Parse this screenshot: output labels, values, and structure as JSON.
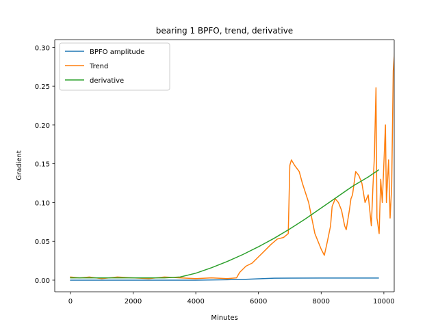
{
  "chart_data": {
    "type": "line",
    "title": "bearing 1 BPFO, trend, derivative",
    "xlabel": "Minutes",
    "ylabel": "Gradient",
    "xlim": [
      -500,
      10330
    ],
    "ylim": [
      -0.015,
      0.31
    ],
    "xticks": [
      0,
      2000,
      4000,
      6000,
      8000,
      10000
    ],
    "xtick_labels": [
      "0",
      "2000",
      "4000",
      "6000",
      "8000",
      "10000"
    ],
    "yticks": [
      0.0,
      0.05,
      0.1,
      0.15,
      0.2,
      0.25,
      0.3
    ],
    "ytick_labels": [
      "0.00",
      "0.05",
      "0.10",
      "0.15",
      "0.20",
      "0.25",
      "0.30"
    ],
    "grid": false,
    "legend_position": "top-left",
    "series": [
      {
        "name": "BPFO amplitude",
        "color": "#1f77b4",
        "points": [
          [
            0,
            0.0
          ],
          [
            2000,
            0.0
          ],
          [
            4000,
            0.0
          ],
          [
            5000,
            0.0005
          ],
          [
            5600,
            0.001
          ],
          [
            6000,
            0.0017
          ],
          [
            6500,
            0.0025
          ],
          [
            7000,
            0.0026
          ],
          [
            8000,
            0.0027
          ],
          [
            9000,
            0.0027
          ],
          [
            9830,
            0.0027
          ]
        ]
      },
      {
        "name": "Trend",
        "color": "#ff7f0e",
        "points": [
          [
            0,
            0.004
          ],
          [
            300,
            0.003
          ],
          [
            600,
            0.004
          ],
          [
            1000,
            0.002
          ],
          [
            1500,
            0.004
          ],
          [
            2000,
            0.003
          ],
          [
            2500,
            0.002
          ],
          [
            3000,
            0.004
          ],
          [
            3500,
            0.003
          ],
          [
            4000,
            0.002
          ],
          [
            4500,
            0.003
          ],
          [
            5000,
            0.002
          ],
          [
            5300,
            0.003
          ],
          [
            5400,
            0.01
          ],
          [
            5600,
            0.018
          ],
          [
            5800,
            0.022
          ],
          [
            6000,
            0.03
          ],
          [
            6200,
            0.038
          ],
          [
            6400,
            0.046
          ],
          [
            6600,
            0.053
          ],
          [
            6800,
            0.055
          ],
          [
            6950,
            0.06
          ],
          [
            7000,
            0.148
          ],
          [
            7050,
            0.155
          ],
          [
            7150,
            0.148
          ],
          [
            7300,
            0.14
          ],
          [
            7400,
            0.125
          ],
          [
            7600,
            0.1
          ],
          [
            7800,
            0.06
          ],
          [
            8000,
            0.04
          ],
          [
            8100,
            0.032
          ],
          [
            8200,
            0.05
          ],
          [
            8300,
            0.07
          ],
          [
            8350,
            0.095
          ],
          [
            8450,
            0.105
          ],
          [
            8550,
            0.1
          ],
          [
            8650,
            0.09
          ],
          [
            8750,
            0.07
          ],
          [
            8800,
            0.065
          ],
          [
            8900,
            0.09
          ],
          [
            8950,
            0.105
          ],
          [
            9000,
            0.11
          ],
          [
            9100,
            0.14
          ],
          [
            9200,
            0.135
          ],
          [
            9300,
            0.125
          ],
          [
            9400,
            0.1
          ],
          [
            9500,
            0.11
          ],
          [
            9550,
            0.09
          ],
          [
            9600,
            0.07
          ],
          [
            9650,
            0.12
          ],
          [
            9700,
            0.16
          ],
          [
            9750,
            0.248
          ],
          [
            9780,
            0.08
          ],
          [
            9850,
            0.06
          ],
          [
            9900,
            0.13
          ],
          [
            9950,
            0.1
          ],
          [
            10000,
            0.15
          ],
          [
            10050,
            0.2
          ],
          [
            10080,
            0.1
          ],
          [
            10150,
            0.155
          ],
          [
            10200,
            0.08
          ],
          [
            10250,
            0.12
          ],
          [
            10300,
            0.27
          ],
          [
            10350,
            0.296
          ],
          [
            10400,
            0.12
          ],
          [
            10450,
            0.16
          ],
          [
            10480,
            0.0
          ]
        ]
      },
      {
        "name": "derivative",
        "color": "#2ca02c",
        "points": [
          [
            0,
            0.003
          ],
          [
            1000,
            0.003
          ],
          [
            2000,
            0.003
          ],
          [
            3000,
            0.003
          ],
          [
            3500,
            0.004
          ],
          [
            4000,
            0.009
          ],
          [
            4500,
            0.016
          ],
          [
            5000,
            0.024
          ],
          [
            5500,
            0.033
          ],
          [
            6000,
            0.043
          ],
          [
            6500,
            0.054
          ],
          [
            7000,
            0.066
          ],
          [
            7500,
            0.079
          ],
          [
            8000,
            0.093
          ],
          [
            8500,
            0.107
          ],
          [
            9000,
            0.121
          ],
          [
            9500,
            0.133
          ],
          [
            9830,
            0.142
          ]
        ]
      }
    ]
  }
}
